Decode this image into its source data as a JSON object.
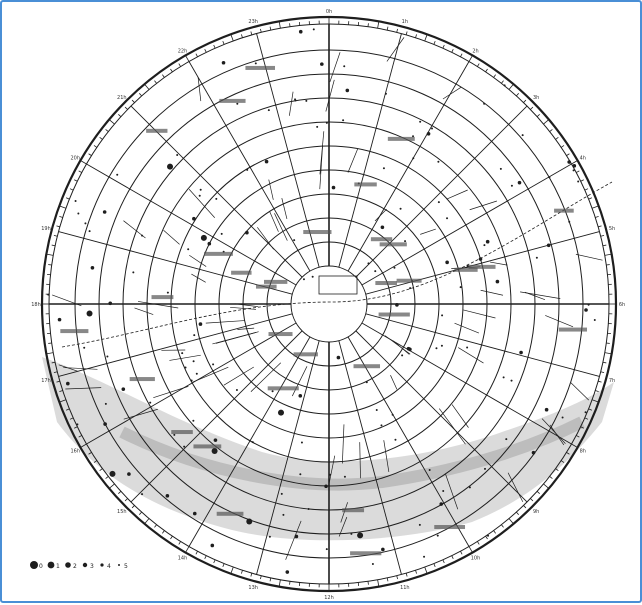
{
  "map": {
    "colors": {
      "frame_border": "#4a8fd6",
      "ink": "#1e1e1e",
      "milky_way": "#bdbdbd",
      "background": "#ffffff"
    },
    "ra_hour_labels": [
      "0h",
      "1h",
      "2h",
      "3h",
      "4h",
      "5h",
      "6h",
      "7h",
      "8h",
      "9h",
      "10h",
      "11h",
      "12h",
      "13h",
      "14h",
      "15h",
      "16h",
      "17h",
      "18h",
      "19h",
      "20h",
      "21h",
      "22h",
      "23h"
    ],
    "declination_rings": [
      "80°",
      "70°",
      "60°",
      "50°",
      "40°",
      "30°",
      "20°",
      "10°",
      "0°",
      "-10°",
      "-20°"
    ],
    "legend": {
      "magnitudes": [
        "0",
        "1",
        "2",
        "3",
        "4",
        "5"
      ]
    }
  }
}
